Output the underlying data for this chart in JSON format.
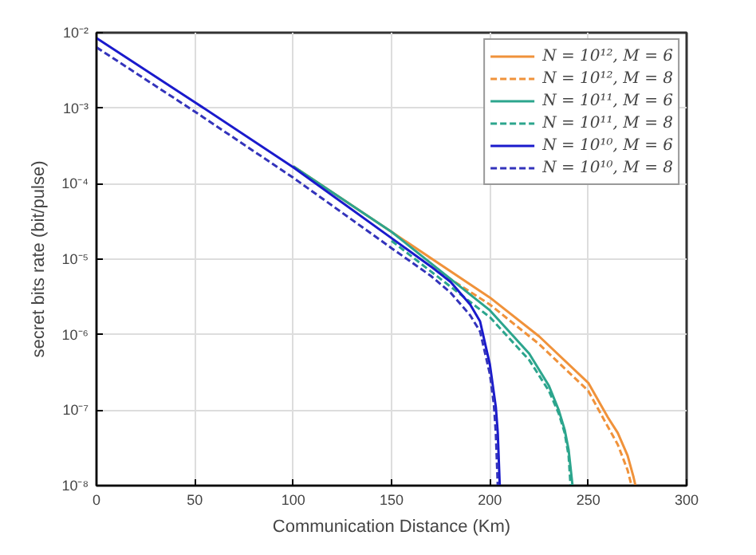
{
  "chart_data": {
    "type": "line",
    "xlabel": "Communication Distance (Km)",
    "ylabel": "secret bits rate (bit/pulse)",
    "log": "y",
    "grid": true,
    "legend": "top right",
    "xlim": [
      0,
      300
    ],
    "xticks": [
      0,
      50,
      100,
      150,
      200,
      250,
      300
    ],
    "ylim": [
      1e-08,
      0.01
    ],
    "yticks": [
      {
        "value": 1e-08,
        "label": "10⁻⁸"
      },
      {
        "value": 1e-07,
        "label": "10⁻⁷"
      },
      {
        "value": 1e-06,
        "label": "10⁻⁶"
      },
      {
        "value": 1e-05,
        "label": "10⁻⁵"
      },
      {
        "value": 0.0001,
        "label": "10⁻⁴"
      },
      {
        "value": 0.001,
        "label": "10⁻³"
      },
      {
        "value": 0.01,
        "label": "10⁻²"
      }
    ],
    "series": [
      {
        "name": "N = 10¹², M = 6",
        "color": "#f0923a",
        "line_style": "solid",
        "x": [
          100,
          150,
          200,
          225,
          250,
          260,
          265,
          270,
          273,
          274
        ],
        "values": [
          0.00017,
          2.3e-05,
          3.1e-06,
          9.5e-07,
          2.3e-07,
          8e-08,
          5e-08,
          2.5e-08,
          1.3e-08,
          1e-08
        ]
      },
      {
        "name": "N = 10¹², M = 8",
        "color": "#f0923a",
        "line_style": "dashed",
        "x": [
          170,
          200,
          225,
          250,
          260,
          265,
          270,
          272
        ],
        "values": [
          8e-06,
          2.5e-06,
          7.5e-07,
          1.8e-07,
          6e-08,
          3.5e-08,
          1.6e-08,
          1e-08
        ]
      },
      {
        "name": "N = 10¹¹, M = 6",
        "color": "#2ca58d",
        "line_style": "solid",
        "x": [
          100,
          150,
          200,
          220,
          230,
          235,
          238,
          240,
          242
        ],
        "values": [
          0.00017,
          2.3e-05,
          2.1e-06,
          5.6e-07,
          2.1e-07,
          1e-07,
          5.5e-08,
          3e-08,
          1e-08
        ]
      },
      {
        "name": "N = 10¹¹, M = 8",
        "color": "#2ca58d",
        "line_style": "dashed",
        "x": [
          150,
          200,
          220,
          230,
          235,
          238,
          240,
          241
        ],
        "values": [
          1.75e-05,
          1.7e-06,
          4.6e-07,
          1.8e-07,
          9e-08,
          5e-08,
          2.5e-08,
          1e-08
        ]
      },
      {
        "name": "N = 10¹⁰, M = 6",
        "color": "#1a1acc",
        "line_style": "solid",
        "x": [
          0,
          50,
          100,
          150,
          170,
          180,
          190,
          195,
          200,
          203,
          204,
          205
        ],
        "values": [
          0.0085,
          0.0012,
          0.000165,
          1.9e-05,
          8e-06,
          5e-06,
          2.5e-06,
          1.5e-06,
          4e-07,
          1.1e-07,
          5e-08,
          1e-08
        ]
      },
      {
        "name": "N = 10¹⁰, M = 8",
        "color": "#3333bb",
        "line_style": "dashed",
        "x": [
          0,
          50,
          100,
          150,
          170,
          180,
          190,
          195,
          200,
          202,
          203,
          204
        ],
        "values": [
          0.0064,
          0.0009,
          0.00012,
          1.4e-05,
          6e-06,
          3.6e-06,
          1.8e-06,
          1.1e-06,
          3e-07,
          1.2e-07,
          5e-08,
          1e-08
        ]
      }
    ]
  }
}
